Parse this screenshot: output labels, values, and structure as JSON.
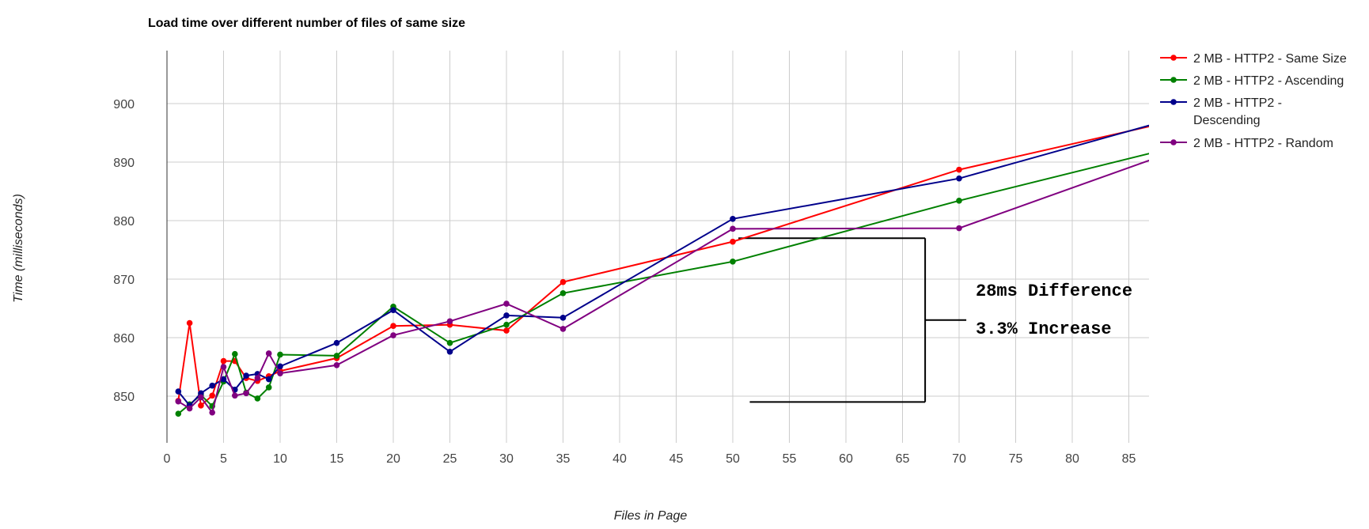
{
  "chart_data": {
    "type": "line",
    "title": "Load time over different number of files of same size",
    "xlabel": "Files in Page",
    "ylabel": "Time (milliseconds)",
    "xlim": [
      0,
      87
    ],
    "ylim": [
      842.5,
      910
    ],
    "xticks": [
      0,
      5,
      10,
      15,
      20,
      25,
      30,
      35,
      40,
      45,
      50,
      55,
      60,
      65,
      70,
      75,
      80,
      85
    ],
    "yticks": [
      850,
      860,
      870,
      880,
      890,
      900
    ],
    "grid": true,
    "legend_position": "right",
    "series": [
      {
        "name": "2 MB - HTTP2 - Same Size",
        "color": "#ff0000",
        "x": [
          1,
          2,
          3,
          4,
          5,
          6,
          7,
          8,
          9,
          10,
          15,
          20,
          25,
          30,
          35,
          50,
          70,
          90
        ],
        "y": [
          849.2,
          862.5,
          848.4,
          850.1,
          856.0,
          856.0,
          853.1,
          852.6,
          853.4,
          854.3,
          856.5,
          862.0,
          862.2,
          861.2,
          869.5,
          876.4,
          888.7,
          897.5
        ]
      },
      {
        "name": "2 MB - HTTP2 - Ascending",
        "color": "#008000",
        "x": [
          1,
          2,
          3,
          4,
          5,
          6,
          7,
          8,
          9,
          10,
          15,
          20,
          25,
          30,
          35,
          50,
          70,
          90
        ],
        "y": [
          847.0,
          848.6,
          850.2,
          848.3,
          852.5,
          857.2,
          850.6,
          849.6,
          851.5,
          857.1,
          856.9,
          865.3,
          859.1,
          862.2,
          867.6,
          873.0,
          883.4,
          893.0
        ]
      },
      {
        "name": "2 MB - HTTP2 - Descending",
        "color": "#00008b",
        "x": [
          1,
          2,
          3,
          4,
          5,
          6,
          7,
          8,
          9,
          10,
          15,
          20,
          25,
          30,
          35,
          50,
          70,
          90
        ],
        "y": [
          850.8,
          848.4,
          850.5,
          851.8,
          852.9,
          851.1,
          853.5,
          853.8,
          852.9,
          855.1,
          859.1,
          864.7,
          857.6,
          863.8,
          863.4,
          880.3,
          887.2,
          898.0
        ]
      },
      {
        "name": "2 MB - HTTP2 - Random",
        "color": "#800080",
        "x": [
          1,
          2,
          3,
          4,
          5,
          6,
          7,
          8,
          9,
          10,
          15,
          20,
          25,
          30,
          35,
          50,
          70,
          90
        ],
        "y": [
          849.1,
          847.9,
          849.8,
          847.2,
          855.0,
          850.1,
          850.5,
          853.1,
          857.3,
          853.9,
          855.3,
          860.4,
          862.8,
          865.8,
          861.5,
          878.6,
          878.7,
          892.5
        ]
      }
    ],
    "annotations": [
      "28ms Difference",
      "3.3% Increase"
    ]
  }
}
